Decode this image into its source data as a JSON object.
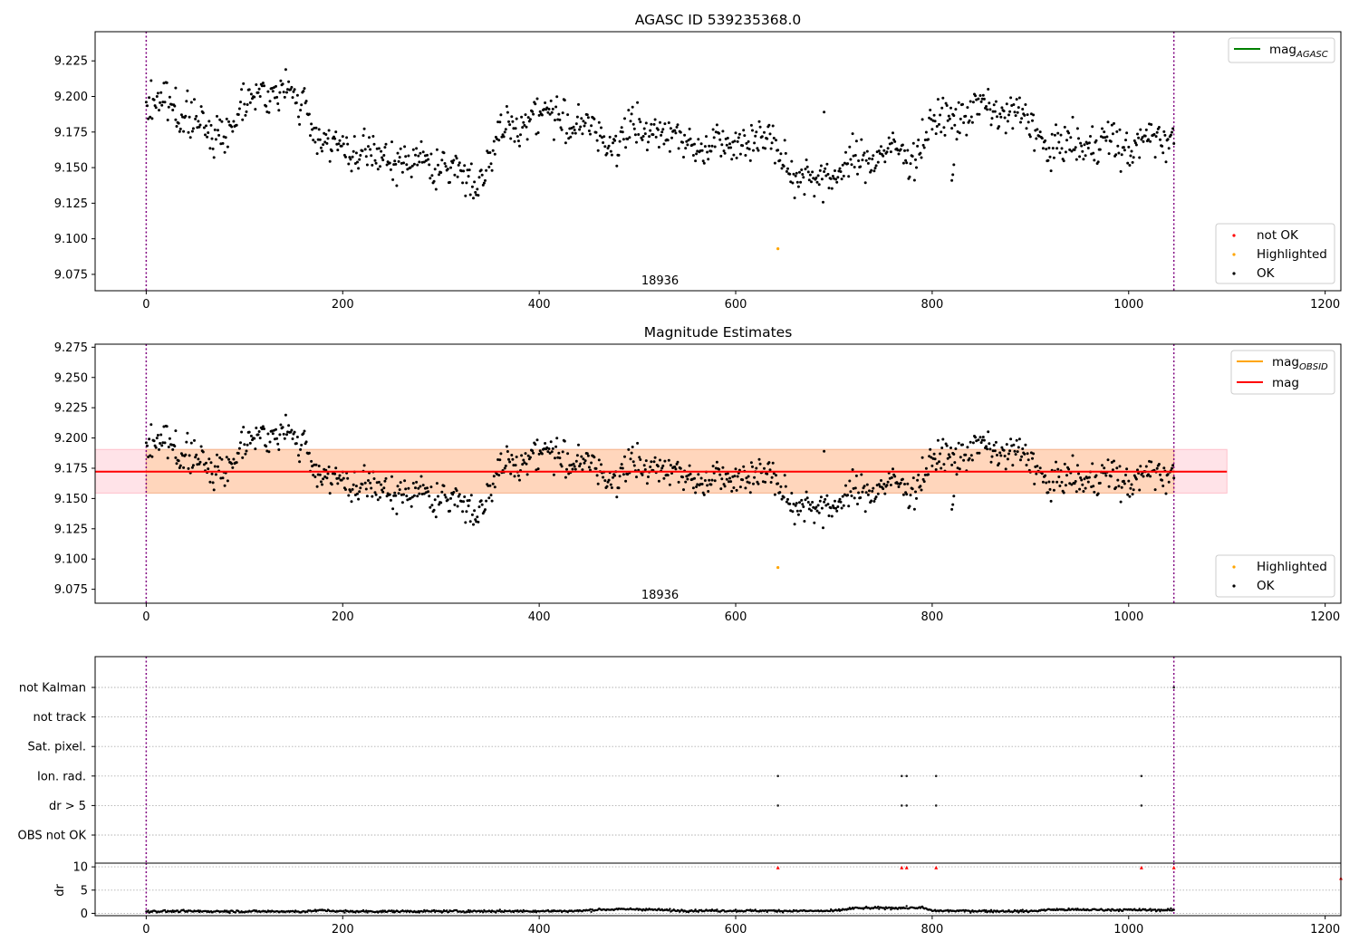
{
  "colors": {
    "ok": "#000000",
    "not_ok": "#ff0000",
    "highlighted": "#ffa500",
    "mag_agasc": "#008000",
    "mag_obsid": "#ffa500",
    "mag": "#ff0000",
    "obs_divider": "#800080",
    "band_outer": "#ffc0cb",
    "band_inner": "#ffd2b0",
    "grid": "#b0b0b0"
  },
  "chart_data": [
    {
      "type": "scatter",
      "title": "AGASC ID 539235368.0",
      "xlim": [
        -52,
        1216
      ],
      "ylim": [
        9.0635,
        9.2455
      ],
      "x_ticks": [
        0,
        200,
        400,
        600,
        800,
        1000,
        1200
      ],
      "y_ticks": [
        9.075,
        9.1,
        9.125,
        9.15,
        9.175,
        9.2,
        9.225
      ],
      "x_tick_labels": [
        "0",
        "200",
        "400",
        "600",
        "800",
        "1000",
        "1200"
      ],
      "y_tick_labels": [
        "9.075",
        "9.100",
        "9.125",
        "9.150",
        "9.175",
        "9.200",
        "9.225"
      ],
      "obsid_label": "18936",
      "obsid_label_x": 523,
      "obsid_label_y": 9.071,
      "observation_boundaries": [
        0,
        1046
      ],
      "series": [
        {
          "name": "OK",
          "values": "generated: 1046 samples of the magnitude light curve following trend_x / trend_y with scatter 0.011"
        },
        {
          "name": "Highlighted",
          "x": [
            643
          ],
          "values": [
            9.093
          ]
        },
        {
          "name": "not OK",
          "x": [],
          "values": []
        }
      ],
      "trend_x": [
        0,
        20,
        60,
        85,
        110,
        160,
        175,
        220,
        260,
        300,
        335,
        360,
        390,
        430,
        450,
        470,
        520,
        560,
        600,
        640,
        660,
        700,
        740,
        780,
        810,
        860,
        900,
        920,
        960,
        1000,
        1040,
        1046
      ],
      "trend_y": [
        9.19,
        9.198,
        9.175,
        9.178,
        9.205,
        9.198,
        9.17,
        9.158,
        9.155,
        9.152,
        9.14,
        9.17,
        9.188,
        9.185,
        9.175,
        9.17,
        9.178,
        9.165,
        9.17,
        9.168,
        9.142,
        9.145,
        9.16,
        9.16,
        9.185,
        9.192,
        9.182,
        9.162,
        9.168,
        9.165,
        9.172,
        9.175
      ],
      "outliers": [
        {
          "x": 820,
          "values": [
            9.141,
            9.145,
            9.152
          ]
        },
        {
          "x": 690,
          "values": [
            9.189
          ]
        },
        {
          "x": 30,
          "values": [
            9.206
          ]
        }
      ],
      "legends": [
        {
          "placement": "upper-right",
          "entries": [
            {
              "label": "mag",
              "sub": "AGASC",
              "marker": "line",
              "color": "#008000"
            }
          ]
        },
        {
          "placement": "lower-right",
          "entries": [
            {
              "label": "not OK",
              "marker": "dot",
              "color": "#ff0000"
            },
            {
              "label": "Highlighted",
              "marker": "dot",
              "color": "#ffa500"
            },
            {
              "label": "OK",
              "marker": "dot",
              "color": "#000000"
            }
          ]
        }
      ]
    },
    {
      "type": "scatter",
      "title": "Magnitude Estimates",
      "xlim": [
        -52,
        1216
      ],
      "ylim": [
        9.0635,
        9.2775
      ],
      "x_ticks": [
        0,
        200,
        400,
        600,
        800,
        1000,
        1200
      ],
      "y_ticks": [
        9.075,
        9.1,
        9.125,
        9.15,
        9.175,
        9.2,
        9.225,
        9.25,
        9.275
      ],
      "x_tick_labels": [
        "0",
        "200",
        "400",
        "600",
        "800",
        "1000",
        "1200"
      ],
      "y_tick_labels": [
        "9.075",
        "9.100",
        "9.125",
        "9.150",
        "9.175",
        "9.200",
        "9.225",
        "9.250",
        "9.275"
      ],
      "obsid_label": "18936",
      "obsid_label_x": 523,
      "obsid_label_y": 9.071,
      "observation_boundaries": [
        0,
        1046
      ],
      "mag_line": {
        "value": 9.1722,
        "x_range": [
          -52,
          1100
        ]
      },
      "mag_band": {
        "range": [
          9.1545,
          9.1905
        ],
        "x_range": [
          -52,
          1100
        ]
      },
      "mag_obsid_band": {
        "range": [
          9.1545,
          9.1905
        ],
        "x_range": [
          0,
          1046
        ]
      },
      "series": [
        {
          "name": "OK",
          "values": "same magnitude samples as panel 1"
        },
        {
          "name": "Highlighted",
          "x": [
            643
          ],
          "values": [
            9.093
          ]
        }
      ],
      "legends": [
        {
          "placement": "upper-right",
          "entries": [
            {
              "label": "mag",
              "sub": "OBSID",
              "marker": "line",
              "color": "#ffa500"
            },
            {
              "label": "mag",
              "marker": "line",
              "color": "#ff0000"
            }
          ]
        },
        {
          "placement": "lower-right",
          "entries": [
            {
              "label": "Highlighted",
              "marker": "dot",
              "color": "#ffa500"
            },
            {
              "label": "OK",
              "marker": "dot",
              "color": "#000000"
            }
          ]
        }
      ]
    },
    {
      "type": "scatter",
      "title": "",
      "xlim": [
        -52,
        1216
      ],
      "categories": [
        "not Kalman",
        "not track",
        "Sat. pixel.",
        "Ion. rad.",
        "dr > 5",
        "OBS not OK"
      ],
      "observation_boundaries": [
        0,
        1046
      ],
      "flags": [
        {
          "category": "not Kalman",
          "x": [
            1046
          ]
        },
        {
          "category": "not track",
          "x": []
        },
        {
          "category": "Sat. pixel.",
          "x": []
        },
        {
          "category": "Ion. rad.",
          "x": [
            643,
            769,
            774,
            804,
            1013
          ]
        },
        {
          "category": "dr > 5",
          "x": [
            643,
            769,
            774,
            804,
            1013
          ]
        },
        {
          "category": "OBS not OK",
          "x": []
        }
      ]
    },
    {
      "type": "scatter",
      "title": "",
      "xlim": [
        -52,
        1216
      ],
      "ylim": [
        -0.5,
        10.8
      ],
      "ylabel": "dr",
      "x_ticks": [
        0,
        200,
        400,
        600,
        800,
        1000,
        1200
      ],
      "y_ticks": [
        0,
        5,
        10
      ],
      "x_tick_labels": [
        "0",
        "200",
        "400",
        "600",
        "800",
        "1000",
        "1200"
      ],
      "y_tick_labels": [
        "0",
        "5",
        "10"
      ],
      "observation_boundaries": [
        0,
        1046
      ],
      "series": [
        {
          "name": "dr",
          "values": "generated: 1046 samples near 0.4 following dr_trend_x / dr_trend_y"
        },
        {
          "name": "dr > 5",
          "x": [
            643,
            769,
            774,
            804,
            1013,
            1046,
            1216
          ],
          "values": [
            9.8,
            9.8,
            9.8,
            9.8,
            9.8,
            9.8,
            7.5
          ]
        }
      ],
      "dr_trend_x": [
        0,
        160,
        180,
        200,
        440,
        460,
        500,
        540,
        700,
        720,
        790,
        800,
        900,
        920,
        1046
      ],
      "dr_trend_y": [
        0.45,
        0.4,
        0.65,
        0.4,
        0.5,
        0.8,
        0.9,
        0.6,
        0.5,
        1.1,
        1.2,
        0.55,
        0.45,
        0.8,
        0.7
      ]
    }
  ]
}
